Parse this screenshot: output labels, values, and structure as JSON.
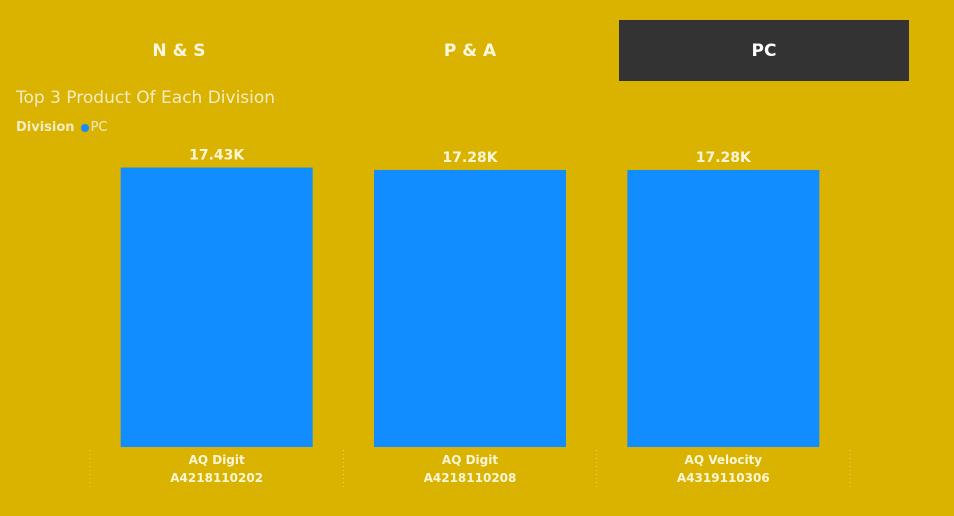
{
  "tabs": [
    {
      "label": "N & S",
      "active": false
    },
    {
      "label": "P & A",
      "active": false
    },
    {
      "label": "PC",
      "active": true
    }
  ],
  "colors": {
    "background": "#d9b300",
    "active_tab": "#333333",
    "bar": "#118dff"
  },
  "chart_data": {
    "type": "bar",
    "title": "Top 3 Product Of Each Division",
    "legend": {
      "title": "Division",
      "position": "top-left",
      "entries": [
        {
          "name": "PC",
          "color": "#118dff"
        }
      ]
    },
    "categories": [
      [
        "AQ Digit",
        "A4218110202"
      ],
      [
        "AQ Digit",
        "A4218110208"
      ],
      [
        "AQ Velocity",
        "A4319110306"
      ]
    ],
    "values": [
      17430,
      17280,
      17280
    ],
    "data_labels": [
      "17.43K",
      "17.28K",
      "17.28K"
    ],
    "ylim": [
      0,
      17900
    ],
    "grid": false
  }
}
